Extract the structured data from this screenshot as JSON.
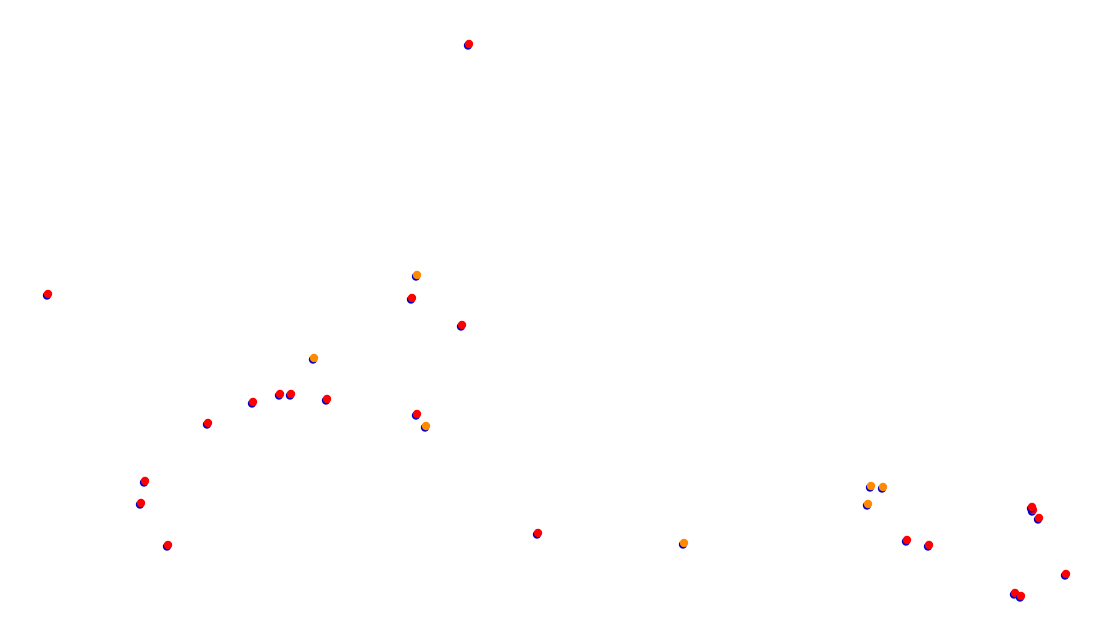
{
  "map": {
    "background": "#ffffff",
    "marker_colors": {
      "blue": "#0000cc",
      "red": "#ff0000",
      "orange": "#ff8a00"
    },
    "markers": [
      {
        "id": "m01",
        "color": "red"
      },
      {
        "id": "m02",
        "color": "red"
      },
      {
        "id": "m03",
        "color": "orange"
      },
      {
        "id": "m04",
        "color": "red"
      },
      {
        "id": "m05",
        "color": "red"
      },
      {
        "id": "m06",
        "color": "orange"
      },
      {
        "id": "m07",
        "color": "red"
      },
      {
        "id": "m08",
        "color": "red"
      },
      {
        "id": "m09",
        "color": "red"
      },
      {
        "id": "m10",
        "color": "red"
      },
      {
        "id": "m11",
        "color": "red"
      },
      {
        "id": "m12",
        "color": "red"
      },
      {
        "id": "m13",
        "color": "orange"
      },
      {
        "id": "m14",
        "color": "red"
      },
      {
        "id": "m15",
        "color": "red"
      },
      {
        "id": "m16",
        "color": "red"
      },
      {
        "id": "m17",
        "color": "red"
      },
      {
        "id": "m18",
        "color": "orange"
      },
      {
        "id": "m19",
        "color": "orange"
      },
      {
        "id": "m20",
        "color": "orange"
      },
      {
        "id": "m21",
        "color": "orange"
      },
      {
        "id": "m22",
        "color": "red"
      },
      {
        "id": "m23",
        "color": "red"
      },
      {
        "id": "m24",
        "color": "red"
      },
      {
        "id": "m25",
        "color": "red"
      },
      {
        "id": "m26",
        "color": "red"
      },
      {
        "id": "m27",
        "color": "red"
      },
      {
        "id": "m28",
        "color": "red"
      },
      {
        "id": "m29",
        "color": "red"
      }
    ]
  }
}
